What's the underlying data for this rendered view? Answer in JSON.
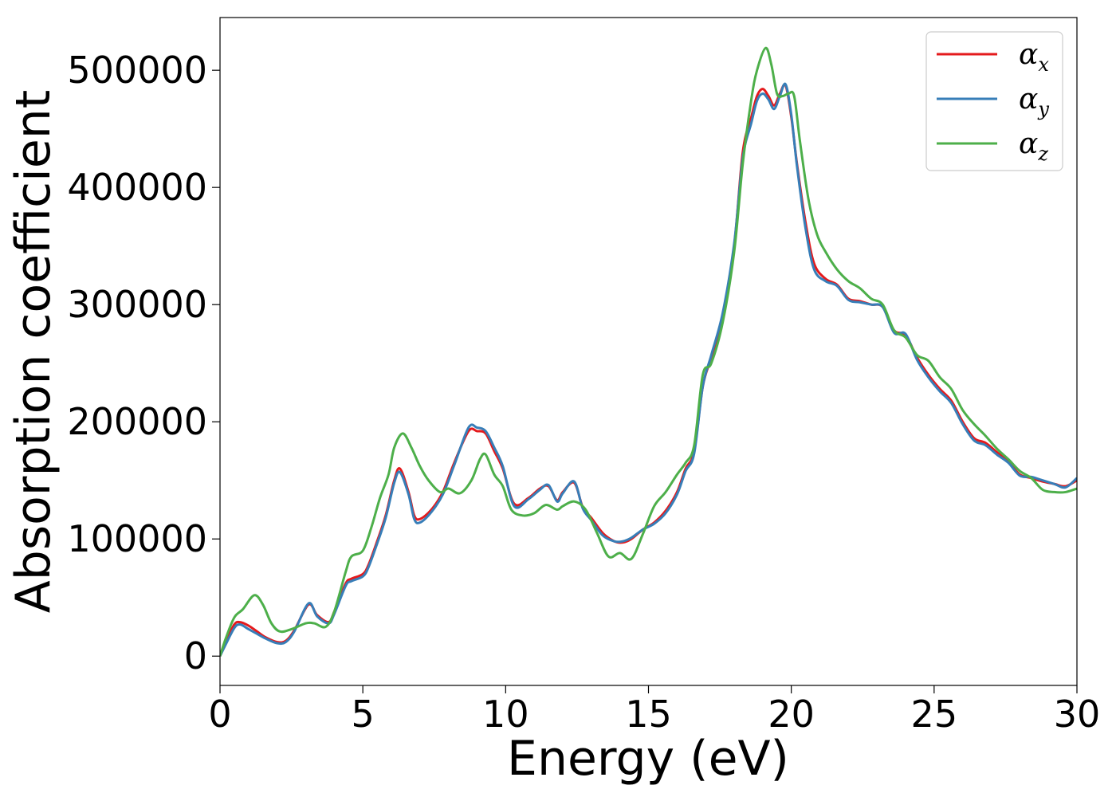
{
  "chart_data": {
    "type": "line",
    "xlabel": "Energy (eV)",
    "ylabel": "Absorption coefficient",
    "xlim": [
      0,
      30
    ],
    "ylim": [
      -25000,
      545000
    ],
    "xticks": [
      0,
      5,
      10,
      15,
      20,
      25,
      30
    ],
    "yticks": [
      0,
      100000,
      200000,
      300000,
      400000,
      500000
    ],
    "grid": false,
    "legend_position": "top-right",
    "series": [
      {
        "name": "α",
        "subscript": "x",
        "color": "#e41a1c",
        "x": [
          0,
          0.2,
          0.5,
          0.7,
          1.0,
          1.3,
          1.6,
          2.0,
          2.3,
          2.6,
          3.1,
          3.4,
          3.8,
          4.0,
          4.4,
          4.6,
          5.0,
          5.2,
          5.5,
          5.8,
          6.1,
          6.3,
          6.6,
          6.8,
          7.0,
          7.4,
          7.8,
          8.2,
          8.7,
          9.0,
          9.3,
          9.6,
          9.9,
          10.3,
          10.8,
          11.2,
          11.5,
          11.8,
          12.0,
          12.4,
          12.7,
          13.0,
          13.4,
          13.8,
          14.1,
          14.4,
          14.8,
          15.2,
          15.6,
          16.0,
          16.3,
          16.6,
          16.9,
          17.2,
          17.6,
          18.0,
          18.3,
          18.6,
          18.8,
          19.0,
          19.2,
          19.4,
          19.6,
          19.8,
          20.0,
          20.2,
          20.5,
          20.8,
          21.2,
          21.6,
          22.0,
          22.4,
          22.8,
          23.2,
          23.6,
          24.0,
          24.4,
          24.8,
          25.2,
          25.6,
          26.0,
          26.4,
          26.8,
          27.2,
          27.6,
          28.0,
          28.4,
          28.8,
          29.2,
          29.6,
          30.0
        ],
        "y": [
          0,
          12000,
          27000,
          29000,
          26000,
          21000,
          16000,
          12000,
          13000,
          22000,
          44000,
          35000,
          29000,
          38000,
          62000,
          66000,
          70000,
          78000,
          98000,
          120000,
          150000,
          160000,
          140000,
          120000,
          117000,
          125000,
          140000,
          165000,
          192000,
          192000,
          190000,
          175000,
          160000,
          130000,
          135000,
          143000,
          145000,
          133000,
          140000,
          148000,
          127000,
          118000,
          105000,
          98000,
          97000,
          100000,
          108000,
          114000,
          124000,
          140000,
          160000,
          175000,
          230000,
          255000,
          290000,
          350000,
          430000,
          460000,
          478000,
          484000,
          478000,
          470000,
          480000,
          487000,
          460000,
          420000,
          370000,
          335000,
          322000,
          317000,
          305000,
          303000,
          300000,
          298000,
          278000,
          274000,
          255000,
          240000,
          228000,
          218000,
          200000,
          186000,
          182000,
          174000,
          166000,
          155000,
          152000,
          149000,
          147000,
          145000,
          150000
        ]
      },
      {
        "name": "α",
        "subscript": "y",
        "color": "#377eb8",
        "x": [
          0,
          0.2,
          0.5,
          0.7,
          1.0,
          1.3,
          1.6,
          2.0,
          2.3,
          2.6,
          3.1,
          3.4,
          3.8,
          4.0,
          4.4,
          4.6,
          5.0,
          5.2,
          5.5,
          5.8,
          6.1,
          6.3,
          6.6,
          6.8,
          7.0,
          7.4,
          7.8,
          8.2,
          8.7,
          9.0,
          9.3,
          9.6,
          9.9,
          10.3,
          10.8,
          11.2,
          11.5,
          11.8,
          12.0,
          12.4,
          12.7,
          13.0,
          13.4,
          13.8,
          14.1,
          14.4,
          14.8,
          15.2,
          15.6,
          16.0,
          16.3,
          16.6,
          16.9,
          17.2,
          17.6,
          18.0,
          18.3,
          18.6,
          18.8,
          19.0,
          19.2,
          19.4,
          19.6,
          19.8,
          20.0,
          20.2,
          20.5,
          20.8,
          21.2,
          21.6,
          22.0,
          22.4,
          22.8,
          23.2,
          23.6,
          24.0,
          24.4,
          24.8,
          25.2,
          25.6,
          26.0,
          26.4,
          26.8,
          27.2,
          27.6,
          28.0,
          28.4,
          28.8,
          29.2,
          29.6,
          30.0
        ],
        "y": [
          0,
          10000,
          24000,
          27000,
          23000,
          19000,
          15000,
          11000,
          12000,
          21000,
          45000,
          34000,
          28000,
          36000,
          60000,
          64000,
          68000,
          76000,
          96000,
          118000,
          148000,
          157000,
          138000,
          117000,
          114000,
          123000,
          138000,
          163000,
          195000,
          195000,
          192000,
          178000,
          162000,
          128000,
          134000,
          142000,
          146000,
          132000,
          139000,
          149000,
          126000,
          116000,
          103000,
          98000,
          98000,
          101000,
          108000,
          113000,
          122000,
          138000,
          158000,
          173000,
          230000,
          257000,
          293000,
          352000,
          425000,
          455000,
          474000,
          480000,
          475000,
          467000,
          478000,
          488000,
          462000,
          418000,
          365000,
          330000,
          320000,
          316000,
          304000,
          302000,
          300000,
          298000,
          276000,
          275000,
          253000,
          238000,
          226000,
          216000,
          198000,
          184000,
          180000,
          172000,
          165000,
          154000,
          153000,
          150000,
          147000,
          144000,
          152000
        ]
      },
      {
        "name": "α",
        "subscript": "z",
        "color": "#4daf4a",
        "x": [
          0,
          0.2,
          0.5,
          0.8,
          1.2,
          1.5,
          1.8,
          2.1,
          2.5,
          3.0,
          3.3,
          3.7,
          4.0,
          4.4,
          4.6,
          5.0,
          5.3,
          5.6,
          5.9,
          6.1,
          6.4,
          6.7,
          7.0,
          7.3,
          7.7,
          8.0,
          8.4,
          8.8,
          9.1,
          9.3,
          9.6,
          9.9,
          10.2,
          10.6,
          11.0,
          11.4,
          11.8,
          12.0,
          12.4,
          12.8,
          13.2,
          13.6,
          14.0,
          14.4,
          14.8,
          15.2,
          15.6,
          16.0,
          16.3,
          16.6,
          16.9,
          17.2,
          17.6,
          18.0,
          18.3,
          18.6,
          18.8,
          19.1,
          19.3,
          19.5,
          19.7,
          19.9,
          20.1,
          20.3,
          20.6,
          20.9,
          21.2,
          21.6,
          22.0,
          22.4,
          22.8,
          23.2,
          23.6,
          24.0,
          24.4,
          24.8,
          25.2,
          25.6,
          26.0,
          26.4,
          26.8,
          27.2,
          27.6,
          28.0,
          28.4,
          28.8,
          29.2,
          29.6,
          30.0
        ],
        "y": [
          0,
          15000,
          33000,
          40000,
          52000,
          44000,
          28000,
          21000,
          23000,
          28000,
          28000,
          25000,
          38000,
          72000,
          85000,
          90000,
          110000,
          135000,
          155000,
          178000,
          190000,
          178000,
          162000,
          150000,
          140000,
          143000,
          139000,
          150000,
          168000,
          172000,
          155000,
          145000,
          125000,
          120000,
          122000,
          129000,
          125000,
          128000,
          132000,
          125000,
          105000,
          85000,
          88000,
          83000,
          104000,
          128000,
          140000,
          155000,
          165000,
          180000,
          240000,
          250000,
          285000,
          345000,
          420000,
          475000,
          500000,
          519000,
          505000,
          480000,
          478000,
          480000,
          478000,
          440000,
          390000,
          360000,
          345000,
          330000,
          320000,
          314000,
          305000,
          300000,
          278000,
          272000,
          257000,
          252000,
          238000,
          228000,
          210000,
          198000,
          188000,
          177000,
          168000,
          158000,
          152000,
          142000,
          140000,
          140000,
          143000
        ]
      }
    ]
  }
}
